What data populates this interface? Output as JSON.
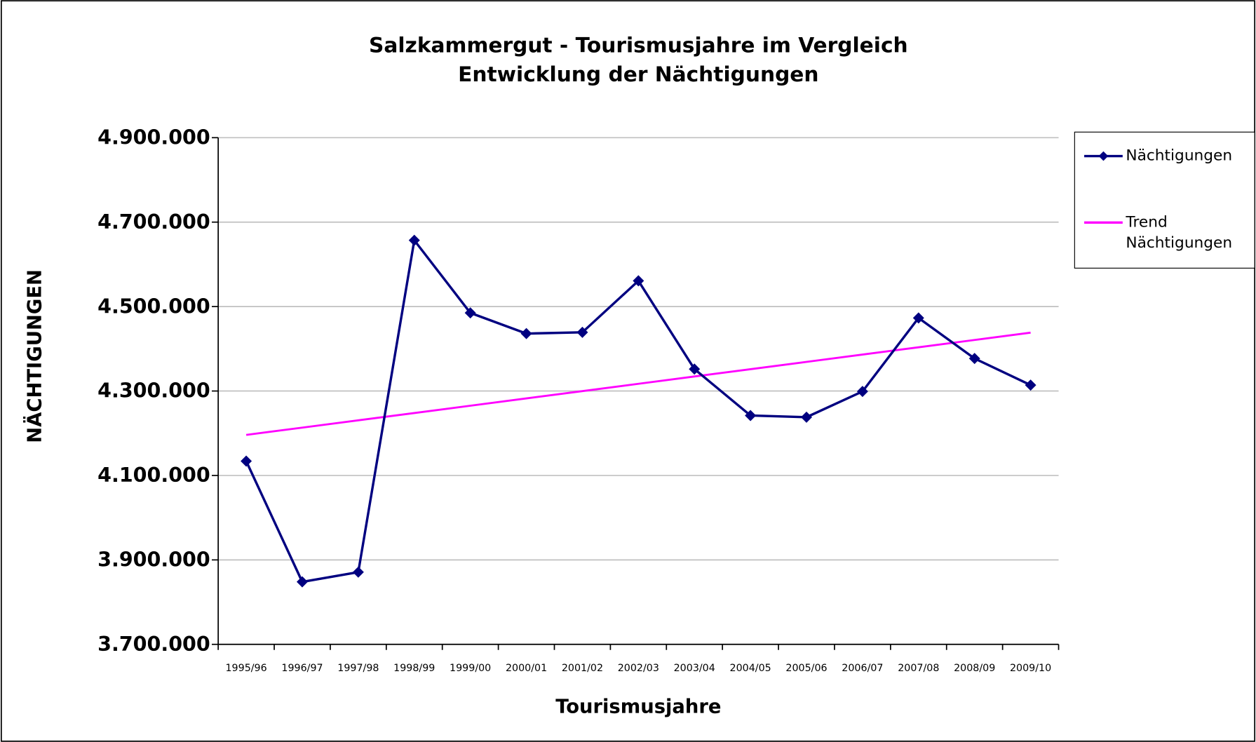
{
  "chart_data": {
    "type": "line",
    "title": "Salzkammergut - Tourismusjahre im Vergleich",
    "subtitle": "Entwicklung der Nächtigungen",
    "x_label": "Tourismusjahre",
    "y_label": "NÄCHTIGUNGEN",
    "categories": [
      "1995/96",
      "1996/97",
      "1997/98",
      "1998/99",
      "1999/00",
      "2000/01",
      "2001/02",
      "2002/03",
      "2003/04",
      "2004/05",
      "2005/06",
      "2006/07",
      "2007/08",
      "2008/09",
      "2009/10"
    ],
    "series": [
      {
        "name": "Nächtigungen",
        "color": "#000080",
        "marker": "diamond",
        "values": [
          4134000,
          3848000,
          3871000,
          4657000,
          4485000,
          4436000,
          4439000,
          4561000,
          4352000,
          4242000,
          4238000,
          4299000,
          4473000,
          4377000,
          4314000
        ]
      },
      {
        "name": "Trend Nächtigungen",
        "color": "#ff00ff",
        "values": [
          4196000,
          4213300,
          4230600,
          4247900,
          4265200,
          4282500,
          4299800,
          4317100,
          4334400,
          4351700,
          4369000,
          4386300,
          4403600,
          4420900,
          4438200
        ]
      }
    ],
    "ylim": [
      3700000,
      4900000
    ],
    "yticks": [
      {
        "value": 3700000,
        "label": "3.700.000"
      },
      {
        "value": 3900000,
        "label": "3.900.000"
      },
      {
        "value": 4100000,
        "label": "4.100.000"
      },
      {
        "value": 4300000,
        "label": "4.300.000"
      },
      {
        "value": 4500000,
        "label": "4.500.000"
      },
      {
        "value": 4700000,
        "label": "4.700.000"
      },
      {
        "value": 4900000,
        "label": "4.900.000"
      }
    ],
    "grid": true,
    "legend": "right"
  }
}
